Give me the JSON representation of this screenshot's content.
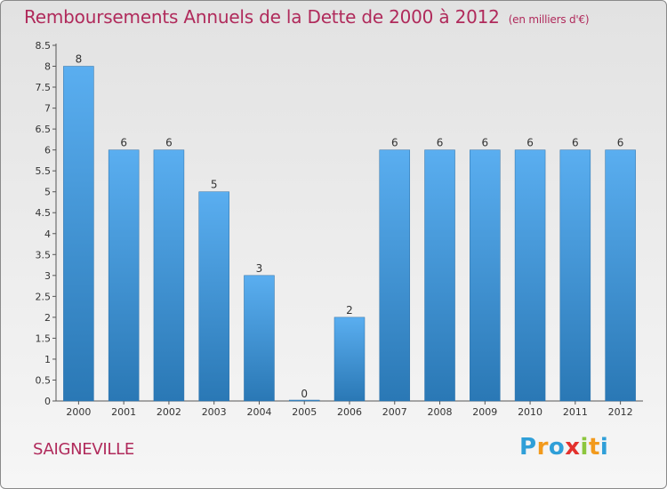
{
  "title": "Remboursements Annuels de la Dette de 2000 à 2012",
  "subtitle": "(en milliers d'€)",
  "place": "SAIGNEVILLE",
  "logo": {
    "letters": [
      "P",
      "r",
      "o",
      "x",
      "i",
      "t",
      "i"
    ],
    "colors": [
      "#2f9fd8",
      "#f29a1c",
      "#2f9fd8",
      "#e3312d",
      "#8cc63e",
      "#f29a1c",
      "#2f9fd8"
    ]
  },
  "colors": {
    "title": "#b02a5b",
    "bar_light": "#5aaef0",
    "bar_dark": "#2a78b5",
    "axis": "#555555"
  },
  "chart_data": {
    "type": "bar",
    "categories": [
      "2000",
      "2001",
      "2002",
      "2003",
      "2004",
      "2005",
      "2006",
      "2007",
      "2008",
      "2009",
      "2010",
      "2011",
      "2012"
    ],
    "values": [
      8,
      6,
      6,
      5,
      3,
      0,
      2,
      6,
      6,
      6,
      6,
      6,
      6
    ],
    "value_labels": [
      "8",
      "6",
      "6",
      "5",
      "3",
      "0",
      "2",
      "6",
      "6",
      "6",
      "6",
      "6",
      "6"
    ],
    "y_ticks": [
      "0",
      "0.5",
      "1",
      "1.5",
      "2",
      "2.5",
      "3",
      "3.5",
      "4",
      "4.5",
      "5",
      "5.5",
      "6",
      "6.5",
      "7",
      "7.5",
      "8",
      "8.5"
    ],
    "ylim": [
      0,
      8.5
    ],
    "grid": false,
    "legend": "none"
  }
}
